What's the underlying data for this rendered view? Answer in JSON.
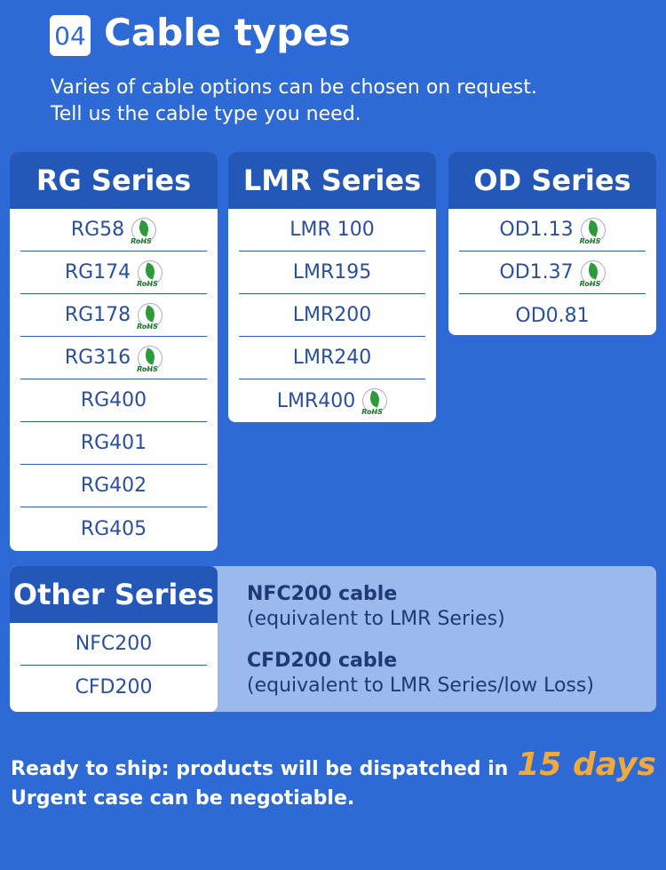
{
  "header": {
    "number": "04",
    "title": "Cable types",
    "line1": "Varies of cable options can be chosen on request.",
    "line2": "Tell us the cable type you need."
  },
  "series": [
    {
      "title": "RG Series",
      "items": [
        {
          "name": "RG58",
          "rohs": true
        },
        {
          "name": "RG174",
          "rohs": true
        },
        {
          "name": "RG178",
          "rohs": true
        },
        {
          "name": "RG316",
          "rohs": true
        },
        {
          "name": "RG400",
          "rohs": false
        },
        {
          "name": "RG401",
          "rohs": false
        },
        {
          "name": "RG402",
          "rohs": false
        },
        {
          "name": "RG405",
          "rohs": false
        }
      ]
    },
    {
      "title": "LMR Series",
      "items": [
        {
          "name": "LMR 100",
          "rohs": false
        },
        {
          "name": "LMR195",
          "rohs": false
        },
        {
          "name": "LMR200",
          "rohs": false
        },
        {
          "name": "LMR240",
          "rohs": false
        },
        {
          "name": "LMR400",
          "rohs": true
        }
      ]
    },
    {
      "title": "OD Series",
      "items": [
        {
          "name": "OD1.13",
          "rohs": true
        },
        {
          "name": "OD1.37",
          "rohs": true
        },
        {
          "name": "OD0.81",
          "rohs": false
        }
      ]
    }
  ],
  "rohs_label": "RoHS",
  "other": {
    "title": "Other Series",
    "items": [
      "NFC200",
      "CFD200"
    ],
    "desc": [
      {
        "name": "NFC200 cable",
        "note": "(equivalent to LMR Series)"
      },
      {
        "name": "CFD200 cable",
        "note": "(equivalent to LMR Series/low Loss)"
      }
    ]
  },
  "footer": {
    "line1": "Ready to ship: products will be dispatched in",
    "highlight": "15 days",
    "line2": "Urgent case can be negotiable."
  },
  "colors": {
    "background": "#2e6ad5",
    "header": "#2458b8",
    "accent": "#f2a93b"
  }
}
